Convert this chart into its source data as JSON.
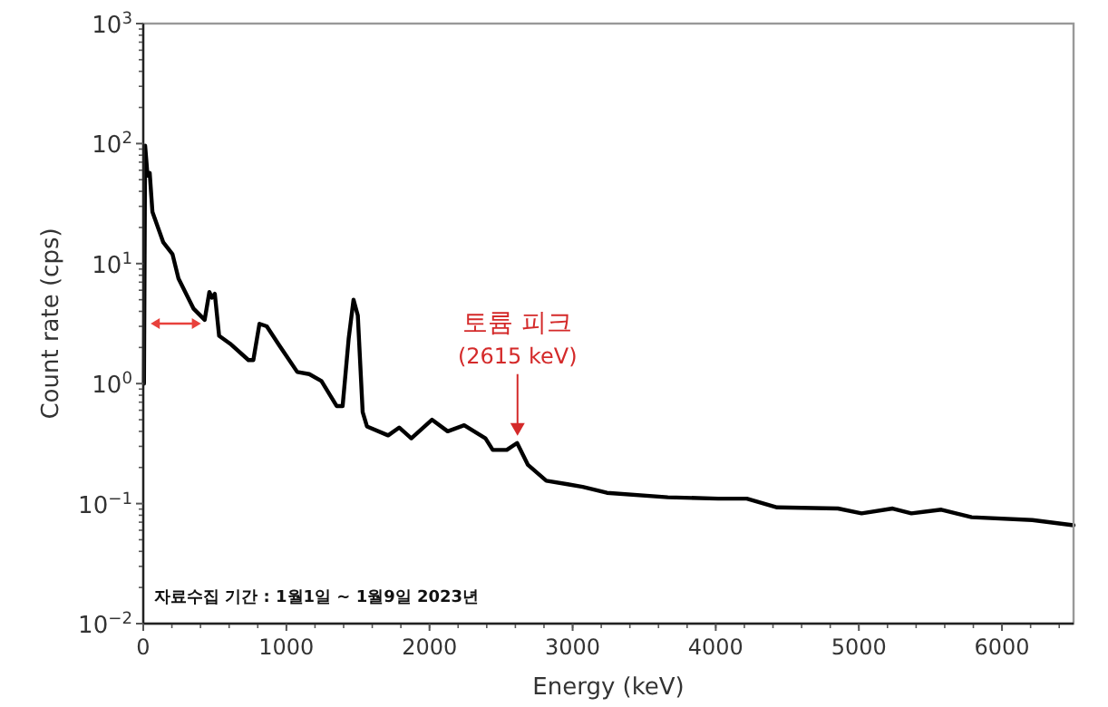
{
  "chart_data": {
    "type": "line",
    "xlabel": "Energy (keV)",
    "ylabel": "Count rate (cps)",
    "log": true,
    "grid": false,
    "marker": "none",
    "line_style": "solid",
    "xlim": [
      0,
      6500
    ],
    "ylim": [
      0.01,
      1000
    ],
    "xticks": [
      0,
      1000,
      2000,
      3000,
      4000,
      5000,
      6000
    ],
    "yticks": [
      {
        "value": 0.01,
        "label": "10$^{−2}$"
      },
      {
        "value": 0.1,
        "label": "10$^{−1}$"
      },
      {
        "value": 1,
        "label": "10$^{0}$"
      },
      {
        "value": 10,
        "label": "10$^{1}$"
      },
      {
        "value": 100,
        "label": "10$^{2}$"
      },
      {
        "value": 1000,
        "label": "10$^{3}$"
      }
    ],
    "x": [
      5,
      13,
      30,
      45,
      64,
      140,
      204,
      246,
      352,
      429,
      462,
      479,
      500,
      530,
      607,
      735,
      769,
      812,
      863,
      948,
      1076,
      1160,
      1245,
      1351,
      1393,
      1435,
      1469,
      1499,
      1533,
      1563,
      1711,
      1788,
      1873,
      2017,
      2127,
      2242,
      2391,
      2442,
      2540,
      2612,
      2688,
      2816,
      2965,
      3070,
      3240,
      3665,
      4017,
      4217,
      4429,
      4854,
      5019,
      5236,
      5367,
      5576,
      5788,
      6212,
      6500
    ],
    "series": [
      {
        "color": "#000000",
        "values": [
          1.0,
          96,
          54,
          57,
          27,
          15,
          12,
          7.5,
          4.2,
          3.4,
          5.8,
          5.2,
          5.6,
          2.5,
          2.15,
          1.57,
          1.57,
          3.15,
          3.0,
          2.1,
          1.25,
          1.2,
          1.05,
          0.65,
          0.65,
          2.35,
          5.0,
          3.7,
          0.58,
          0.44,
          0.37,
          0.43,
          0.35,
          0.5,
          0.4,
          0.45,
          0.35,
          0.28,
          0.28,
          0.32,
          0.21,
          0.155,
          0.145,
          0.138,
          0.123,
          0.113,
          0.11,
          0.11,
          0.093,
          0.091,
          0.083,
          0.091,
          0.083,
          0.089,
          0.077,
          0.073,
          0.066
        ]
      }
    ],
    "annotations": [
      {
        "text": "토륨 피크\n(2615 keV)",
        "x": 2615,
        "y": 0.32
      },
      "자료수집 기간 : 1월1일 ~ 1월9일 2023년"
    ]
  }
}
